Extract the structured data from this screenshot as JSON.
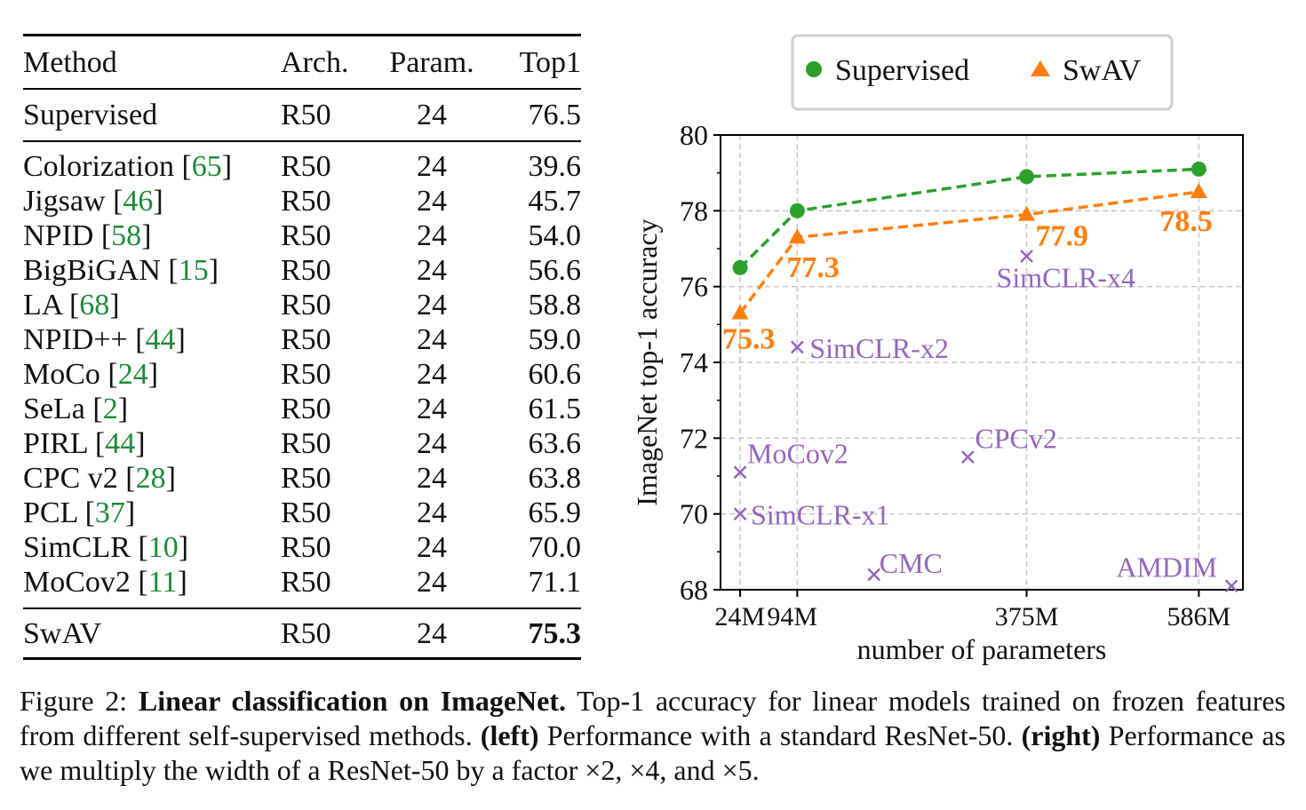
{
  "table": {
    "headers": {
      "method": "Method",
      "arch": "Arch.",
      "param": "Param.",
      "top1": "Top1"
    },
    "baseline": {
      "method": "Supervised",
      "ref": "",
      "arch": "R50",
      "param": "24",
      "top1": "76.5"
    },
    "rows": [
      {
        "method": "Colorization",
        "ref": "65",
        "arch": "R50",
        "param": "24",
        "top1": "39.6"
      },
      {
        "method": "Jigsaw",
        "ref": "46",
        "arch": "R50",
        "param": "24",
        "top1": "45.7"
      },
      {
        "method": "NPID",
        "ref": "58",
        "arch": "R50",
        "param": "24",
        "top1": "54.0"
      },
      {
        "method": "BigBiGAN",
        "ref": "15",
        "arch": "R50",
        "param": "24",
        "top1": "56.6"
      },
      {
        "method": "LA",
        "ref": "68",
        "arch": "R50",
        "param": "24",
        "top1": "58.8"
      },
      {
        "method": "NPID++",
        "ref": "44",
        "arch": "R50",
        "param": "24",
        "top1": "59.0"
      },
      {
        "method": "MoCo",
        "ref": "24",
        "arch": "R50",
        "param": "24",
        "top1": "60.6"
      },
      {
        "method": "SeLa",
        "ref": "2",
        "arch": "R50",
        "param": "24",
        "top1": "61.5"
      },
      {
        "method": "PIRL",
        "ref": "44",
        "arch": "R50",
        "param": "24",
        "top1": "63.6"
      },
      {
        "method": "CPC v2",
        "ref": "28",
        "arch": "R50",
        "param": "24",
        "top1": "63.8"
      },
      {
        "method": "PCL",
        "ref": "37",
        "arch": "R50",
        "param": "24",
        "top1": "65.9"
      },
      {
        "method": "SimCLR",
        "ref": "10",
        "arch": "R50",
        "param": "24",
        "top1": "70.0"
      },
      {
        "method": "MoCov2",
        "ref": "11",
        "arch": "R50",
        "param": "24",
        "top1": "71.1"
      }
    ],
    "ours": {
      "method": "SwAV",
      "arch": "R50",
      "param": "24",
      "top1": "75.3"
    }
  },
  "chart_data": {
    "type": "line",
    "xlabel": "number of parameters",
    "ylabel": "ImageNet top-1 accuracy",
    "ylim": [
      68,
      80
    ],
    "yticks": [
      68,
      70,
      72,
      74,
      76,
      78,
      80
    ],
    "x_range_M": [
      0,
      640
    ],
    "xticks": [
      {
        "value": 24,
        "label": "24M"
      },
      {
        "value": 94,
        "label": "94M"
      },
      {
        "value": 375,
        "label": "375M"
      },
      {
        "value": 586,
        "label": "586M"
      }
    ],
    "grid": true,
    "legend_position": "top",
    "series": [
      {
        "name": "Supervised",
        "marker": "circle",
        "color": "#2ca02c",
        "x": [
          24,
          94,
          375,
          586
        ],
        "y": [
          76.5,
          78.0,
          78.9,
          79.1
        ]
      },
      {
        "name": "SwAV",
        "marker": "triangle",
        "color": "#ff7f0e",
        "x": [
          24,
          94,
          375,
          586
        ],
        "y": [
          75.3,
          77.3,
          77.9,
          78.5
        ],
        "labels": [
          "75.3",
          "77.3",
          "77.9",
          "78.5"
        ]
      }
    ],
    "scatter": {
      "color": "#9467bd",
      "marker": "x",
      "points": [
        {
          "label": "SimCLR-x4",
          "x": 375,
          "y": 76.8
        },
        {
          "label": "SimCLR-x2",
          "x": 94,
          "y": 74.4
        },
        {
          "label": "CPCv2",
          "x": 303,
          "y": 71.5
        },
        {
          "label": "MoCov2",
          "x": 24,
          "y": 71.1
        },
        {
          "label": "SimCLR-x1",
          "x": 24,
          "y": 70.0
        },
        {
          "label": "CMC",
          "x": 188,
          "y": 68.4
        },
        {
          "label": "AMDIM",
          "x": 626,
          "y": 68.1
        }
      ]
    }
  },
  "caption": {
    "prefix": "Figure 2: ",
    "title": "Linear classification on ImageNet.",
    "text1": " Top-1 accuracy for linear models trained on frozen features from different self-supervised methods. ",
    "left_label": "(left)",
    "text2": " Performance with a standard ResNet-50. ",
    "right_label": "(right)",
    "text3": " Performance as we multiply the width of a ResNet-50 by a factor ×2, ×4, and ×5."
  }
}
